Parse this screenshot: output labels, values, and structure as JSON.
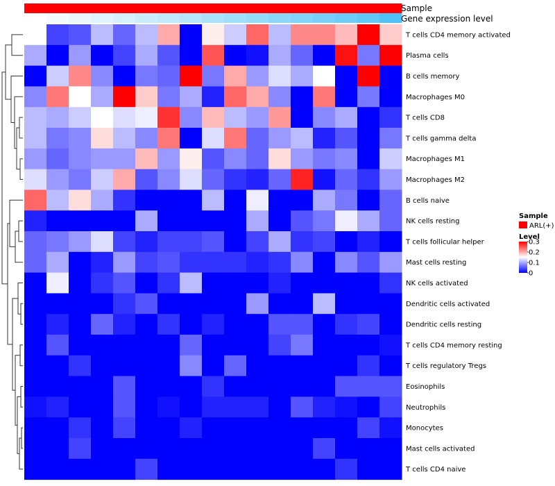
{
  "chart_data": {
    "type": "heatmap",
    "title": "",
    "annotation_rows": [
      {
        "name": "Sample",
        "label": "Sample"
      },
      {
        "name": "Gene expression level",
        "label": "Gene expression level"
      }
    ],
    "rows": [
      "T cells CD4 memory activated",
      "Plasma cells",
      "B cells memory",
      "Macrophages M0",
      "T cells CD8",
      "T cells gamma delta",
      "Macrophages M1",
      "Macrophages M2",
      "B cells naive",
      "NK cells resting",
      "T cells follicular helper",
      "Mast cells resting",
      "NK cells activated",
      "Dendritic cells activated",
      "Dendritic cells resting",
      "T cells CD4 memory resting",
      "T cells regulatory  Tregs",
      "Eosinophils",
      "Neutrophils",
      "Monocytes",
      "Mast cells activated",
      "T cells CD4 naive"
    ],
    "n_columns": 17,
    "values": [
      [
        0.15,
        0.04,
        0.05,
        0.11,
        0.06,
        0.11,
        0.2,
        0.0,
        0.16,
        0.12,
        0.24,
        0.11,
        0.22,
        0.22,
        0.19,
        0.3,
        0.18
      ],
      [
        0.1,
        0.0,
        0.09,
        0.0,
        0.04,
        0.1,
        0.05,
        0.0,
        0.25,
        0.0,
        0.01,
        0.1,
        0.06,
        0.0,
        0.29,
        0.07,
        0.3
      ],
      [
        0.0,
        0.12,
        0.22,
        0.08,
        0.0,
        0.07,
        0.06,
        0.31,
        0.07,
        0.2,
        0.09,
        0.13,
        0.1,
        0.15,
        0.0,
        0.3,
        0.0
      ],
      [
        0.08,
        0.23,
        0.15,
        0.1,
        0.31,
        0.18,
        0.07,
        0.1,
        0.02,
        0.24,
        0.2,
        0.08,
        0.0,
        0.23,
        0.0,
        0.07,
        0.0
      ],
      [
        0.11,
        0.1,
        0.12,
        0.15,
        0.13,
        0.14,
        0.27,
        0.08,
        0.19,
        0.11,
        0.09,
        0.21,
        0.0,
        0.08,
        0.1,
        0.0,
        0.03
      ],
      [
        0.11,
        0.07,
        0.08,
        0.17,
        0.11,
        0.08,
        0.23,
        0.0,
        0.13,
        0.23,
        0.06,
        0.09,
        0.11,
        0.02,
        0.05,
        0.0,
        0.07
      ],
      [
        0.09,
        0.06,
        0.08,
        0.09,
        0.09,
        0.19,
        0.09,
        0.16,
        0.05,
        0.08,
        0.06,
        0.17,
        0.09,
        0.07,
        0.08,
        0.0,
        0.12
      ],
      [
        0.13,
        0.09,
        0.07,
        0.12,
        0.2,
        0.05,
        0.08,
        0.13,
        0.06,
        0.03,
        0.02,
        0.06,
        0.28,
        0.01,
        0.06,
        0.03,
        0.09
      ],
      [
        0.24,
        0.11,
        0.17,
        0.1,
        0.03,
        0.0,
        0.0,
        0.0,
        0.11,
        0.0,
        0.14,
        0.0,
        0.0,
        0.1,
        0.07,
        0.0,
        0.06
      ],
      [
        0.02,
        0.0,
        0.0,
        0.0,
        0.0,
        0.1,
        0.0,
        0.0,
        0.0,
        0.0,
        0.1,
        0.0,
        0.05,
        0.07,
        0.14,
        0.1,
        0.06
      ],
      [
        0.06,
        0.07,
        0.09,
        0.13,
        0.04,
        0.02,
        0.04,
        0.04,
        0.05,
        0.0,
        0.04,
        0.1,
        0.03,
        0.04,
        0.0,
        0.02,
        0.0
      ],
      [
        0.06,
        0.1,
        0.0,
        0.02,
        0.09,
        0.04,
        0.05,
        0.03,
        0.03,
        0.03,
        0.02,
        0.03,
        0.08,
        0.0,
        0.08,
        0.05,
        0.09
      ],
      [
        0.0,
        0.14,
        0.0,
        0.03,
        0.05,
        0.0,
        0.03,
        0.11,
        0.0,
        0.0,
        0.0,
        0.02,
        0.0,
        0.0,
        0.0,
        0.0,
        0.03
      ],
      [
        0.0,
        0.0,
        0.0,
        0.0,
        0.03,
        0.05,
        0.0,
        0.0,
        0.0,
        0.0,
        0.09,
        0.0,
        0.0,
        0.11,
        0.0,
        0.0,
        0.0
      ],
      [
        0.0,
        0.02,
        0.0,
        0.06,
        0.02,
        0.0,
        0.03,
        0.0,
        0.02,
        0.0,
        0.0,
        0.05,
        0.05,
        0.0,
        0.03,
        0.04,
        0.0
      ],
      [
        0.0,
        0.05,
        0.0,
        0.0,
        0.0,
        0.0,
        0.0,
        0.06,
        0.0,
        0.0,
        0.0,
        0.04,
        0.07,
        0.0,
        0.0,
        0.0,
        0.01
      ],
      [
        0.0,
        0.0,
        0.03,
        0.0,
        0.0,
        0.0,
        0.0,
        0.08,
        0.0,
        0.06,
        0.0,
        0.0,
        0.0,
        0.0,
        0.0,
        0.03,
        0.0
      ],
      [
        0.0,
        0.0,
        0.0,
        0.0,
        0.05,
        0.0,
        0.0,
        0.0,
        0.03,
        0.0,
        0.0,
        0.0,
        0.0,
        0.0,
        0.05,
        0.05,
        0.05
      ],
      [
        0.01,
        0.02,
        0.0,
        0.0,
        0.05,
        0.0,
        0.01,
        0.0,
        0.02,
        0.02,
        0.02,
        0.0,
        0.05,
        0.02,
        0.01,
        0.0,
        0.04
      ],
      [
        0.0,
        0.0,
        0.03,
        0.0,
        0.04,
        0.0,
        0.0,
        0.02,
        0.0,
        0.0,
        0.0,
        0.0,
        0.0,
        0.0,
        0.0,
        0.04,
        0.01
      ],
      [
        0.0,
        0.0,
        0.04,
        0.0,
        0.0,
        0.0,
        0.0,
        0.0,
        0.0,
        0.0,
        0.0,
        0.0,
        0.0,
        0.04,
        0.0,
        0.0,
        0.0
      ],
      [
        0.0,
        0.0,
        0.0,
        0.0,
        0.0,
        0.04,
        0.0,
        0.0,
        0.0,
        0.0,
        0.0,
        0.0,
        0.0,
        0.0,
        0.03,
        0.0,
        0.0
      ]
    ],
    "sample_annotation": {
      "values": [
        "ARL(+)",
        "ARL(+)",
        "ARL(+)",
        "ARL(+)",
        "ARL(+)",
        "ARL(+)",
        "ARL(+)",
        "ARL(+)",
        "ARL(+)",
        "ARL(+)",
        "ARL(+)",
        "ARL(+)",
        "ARL(+)",
        "ARL(+)",
        "ARL(+)",
        "ARL(+)",
        "ARL(+)"
      ],
      "color": "#ff0000"
    },
    "gene_expression_annotation": {
      "values": [
        0.0,
        0.06,
        0.12,
        0.18,
        0.24,
        0.3,
        0.36,
        0.42,
        0.48,
        0.54,
        0.6,
        0.66,
        0.72,
        0.78,
        0.84,
        0.9,
        1.0
      ],
      "color_low": "#ffffff",
      "color_high": "#4fc3f7"
    },
    "legend": {
      "sample": {
        "title": "Sample",
        "items": [
          {
            "label": "ARL(+)",
            "color": "#ff0000"
          }
        ]
      },
      "level": {
        "title": "Level",
        "ticks": [
          0.3,
          0.2,
          0.1,
          0
        ],
        "tick_labels": [
          "0.3",
          "0.2",
          "0.1",
          "0"
        ],
        "range": [
          0,
          0.3
        ]
      },
      "placement": "right"
    },
    "color_scale": {
      "low": "#0000ff",
      "mid": "#ffffff",
      "high": "#ff0000",
      "range": [
        0,
        0.3
      ]
    }
  }
}
